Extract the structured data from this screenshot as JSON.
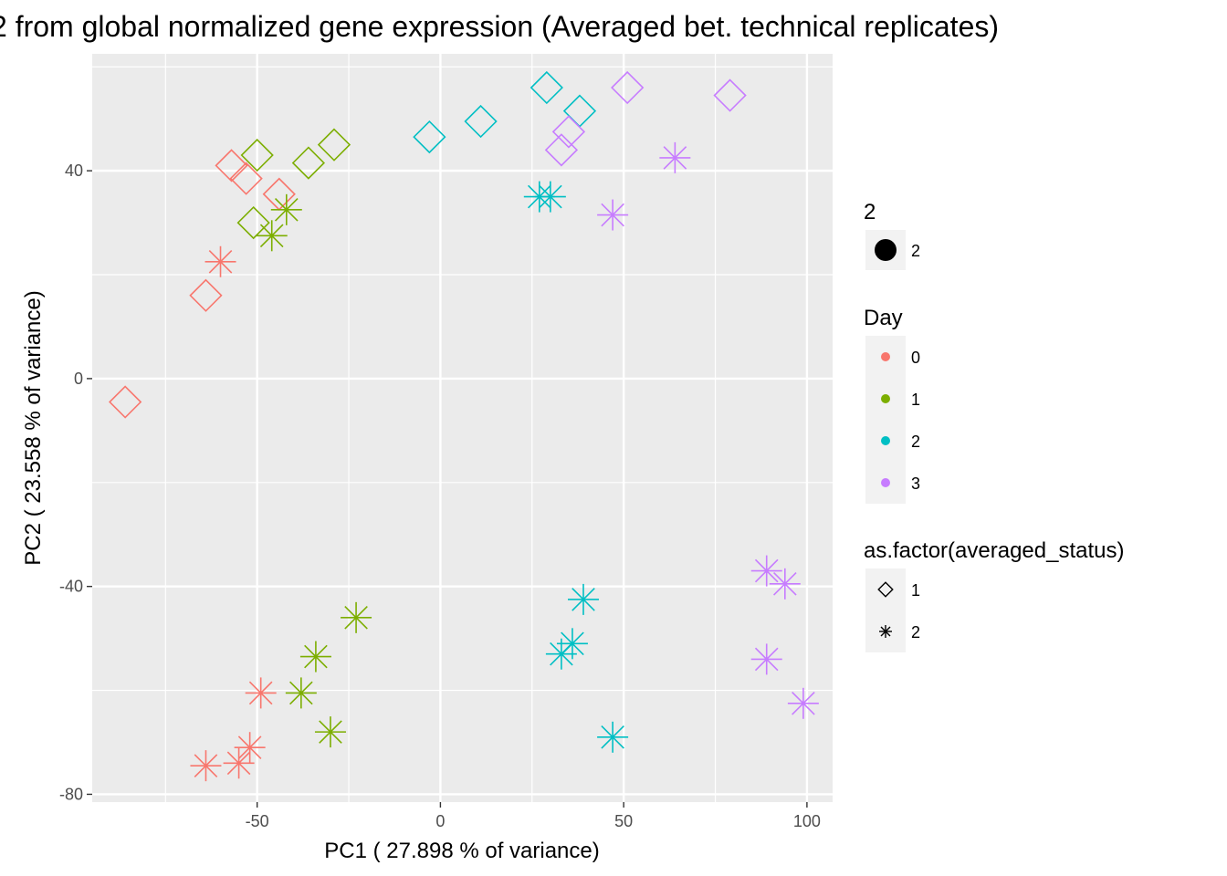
{
  "chart_data": {
    "type": "scatter",
    "title": "2 from global normalized gene expression (Averaged bet. technical replicates)",
    "xlabel": "PC1 ( 27.898 % of variance)",
    "ylabel": "PC2 ( 23.558 % of variance)",
    "xlim": [
      -95,
      107
    ],
    "ylim": [
      -81.5,
      62.5
    ],
    "x_ticks": [
      -50,
      0,
      50,
      100
    ],
    "y_ticks": [
      -80,
      -40,
      0,
      40
    ],
    "x_minor": [
      -75,
      -25,
      25,
      75
    ],
    "y_minor": [
      -60,
      -20,
      20,
      60
    ],
    "grid": true,
    "colors": {
      "day0": "#F8766D",
      "day1": "#7CAE00",
      "day2": "#00BFC4",
      "day3": "#C77CFF",
      "panel": "#EBEBEB",
      "grid": "#FFFFFF"
    },
    "series": [
      {
        "day": "0",
        "color": "#F8766D",
        "averaged_status": "1",
        "shape": "diamond",
        "points": [
          [
            -86,
            -4.5
          ],
          [
            -64,
            16
          ],
          [
            -57,
            41
          ],
          [
            -53,
            38.5
          ],
          [
            -44,
            35.5
          ]
        ]
      },
      {
        "day": "0",
        "color": "#F8766D",
        "averaged_status": "2",
        "shape": "asterisk",
        "points": [
          [
            -60,
            22.5
          ],
          [
            -49,
            -60.5
          ],
          [
            -52,
            -71
          ],
          [
            -55,
            -74
          ],
          [
            -64,
            -74.5
          ]
        ]
      },
      {
        "day": "1",
        "color": "#7CAE00",
        "averaged_status": "1",
        "shape": "diamond",
        "points": [
          [
            -50,
            43
          ],
          [
            -51,
            30
          ],
          [
            -36,
            41.5
          ],
          [
            -29,
            45
          ]
        ]
      },
      {
        "day": "1",
        "color": "#7CAE00",
        "averaged_status": "2",
        "shape": "asterisk",
        "points": [
          [
            -42,
            32.5
          ],
          [
            -46,
            27.5
          ],
          [
            -23,
            -46
          ],
          [
            -34,
            -53.5
          ],
          [
            -38,
            -60.5
          ],
          [
            -30,
            -68
          ]
        ]
      },
      {
        "day": "2",
        "color": "#00BFC4",
        "averaged_status": "1",
        "shape": "diamond",
        "points": [
          [
            -3,
            46.5
          ],
          [
            11,
            49.5
          ],
          [
            29,
            56
          ],
          [
            38,
            51.5
          ]
        ]
      },
      {
        "day": "2",
        "color": "#00BFC4",
        "averaged_status": "2",
        "shape": "asterisk",
        "points": [
          [
            27,
            35
          ],
          [
            30,
            35
          ],
          [
            39,
            -42.5
          ],
          [
            36,
            -51
          ],
          [
            33,
            -53
          ],
          [
            47,
            -69
          ]
        ]
      },
      {
        "day": "3",
        "color": "#C77CFF",
        "averaged_status": "1",
        "shape": "diamond",
        "points": [
          [
            51,
            56
          ],
          [
            79,
            54.5
          ],
          [
            35,
            47.5
          ],
          [
            33,
            44
          ]
        ]
      },
      {
        "day": "3",
        "color": "#C77CFF",
        "averaged_status": "2",
        "shape": "asterisk",
        "points": [
          [
            64,
            42.5
          ],
          [
            47,
            31.5
          ],
          [
            89,
            -37
          ],
          [
            94,
            -39.5
          ],
          [
            89,
            -54
          ],
          [
            99,
            -62.5
          ]
        ]
      }
    ]
  },
  "legend": {
    "size": {
      "title": "2",
      "items": [
        {
          "label": "2",
          "shape": "circle"
        }
      ]
    },
    "day": {
      "title": "Day",
      "items": [
        {
          "label": "0",
          "color": "#F8766D"
        },
        {
          "label": "1",
          "color": "#7CAE00"
        },
        {
          "label": "2",
          "color": "#00BFC4"
        },
        {
          "label": "3",
          "color": "#C77CFF"
        }
      ]
    },
    "shape": {
      "title": "as.factor(averaged_status)",
      "items": [
        {
          "label": "1",
          "shape": "diamond"
        },
        {
          "label": "2",
          "shape": "asterisk"
        }
      ]
    }
  }
}
